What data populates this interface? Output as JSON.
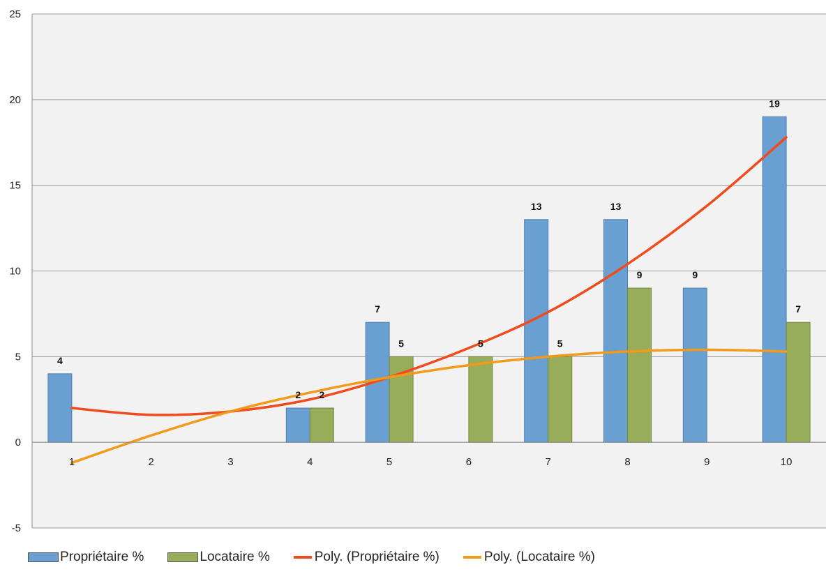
{
  "chart_data": {
    "type": "bar",
    "categories": [
      "1",
      "2",
      "3",
      "4",
      "5",
      "6",
      "7",
      "8",
      "9",
      "10"
    ],
    "ylim": [
      -5,
      25
    ],
    "yticks": [
      -5,
      0,
      5,
      10,
      15,
      20,
      25
    ],
    "grid": true,
    "legend_position": "bottom-left",
    "series": [
      {
        "name": "Propriétaire %",
        "kind": "bar",
        "color": "#6a9fd2",
        "values": [
          4,
          null,
          null,
          2,
          7,
          null,
          13,
          13,
          9,
          19
        ],
        "labels": [
          "4",
          "",
          "",
          "2",
          "7",
          "",
          "13",
          "13",
          "9",
          "19"
        ]
      },
      {
        "name": "Locataire %",
        "kind": "bar",
        "color": "#97ad5a",
        "values": [
          null,
          null,
          null,
          2,
          5,
          5,
          5,
          9,
          null,
          7
        ],
        "labels": [
          "",
          "",
          "",
          "2",
          "5",
          "5",
          "5",
          "9",
          "",
          "7"
        ]
      }
    ],
    "trendlines": [
      {
        "name": "Poly. (Propriétaire %)",
        "color": "#f04b1c",
        "x": [
          1,
          2,
          3,
          4,
          5,
          6,
          7,
          8,
          9,
          10
        ],
        "y": [
          2.0,
          1.6,
          1.8,
          2.5,
          3.8,
          5.5,
          7.6,
          10.4,
          13.8,
          17.8
        ]
      },
      {
        "name": "Poly. (Locataire %)",
        "color": "#f29a1a",
        "x": [
          1,
          2,
          3,
          4,
          5,
          6,
          7,
          8,
          9,
          10
        ],
        "y": [
          -1.2,
          0.4,
          1.8,
          2.9,
          3.8,
          4.5,
          5.0,
          5.3,
          5.4,
          5.3
        ]
      }
    ]
  },
  "legend": [
    {
      "label": "Propriétaire %",
      "type": "bar",
      "color": "#6a9fd2"
    },
    {
      "label": "Locataire %",
      "type": "bar",
      "color": "#97ad5a"
    },
    {
      "label": "Poly. (Propriétaire %)",
      "type": "line",
      "color": "#f04b1c"
    },
    {
      "label": "Poly. (Locataire %)",
      "type": "line",
      "color": "#f29a1a"
    }
  ]
}
